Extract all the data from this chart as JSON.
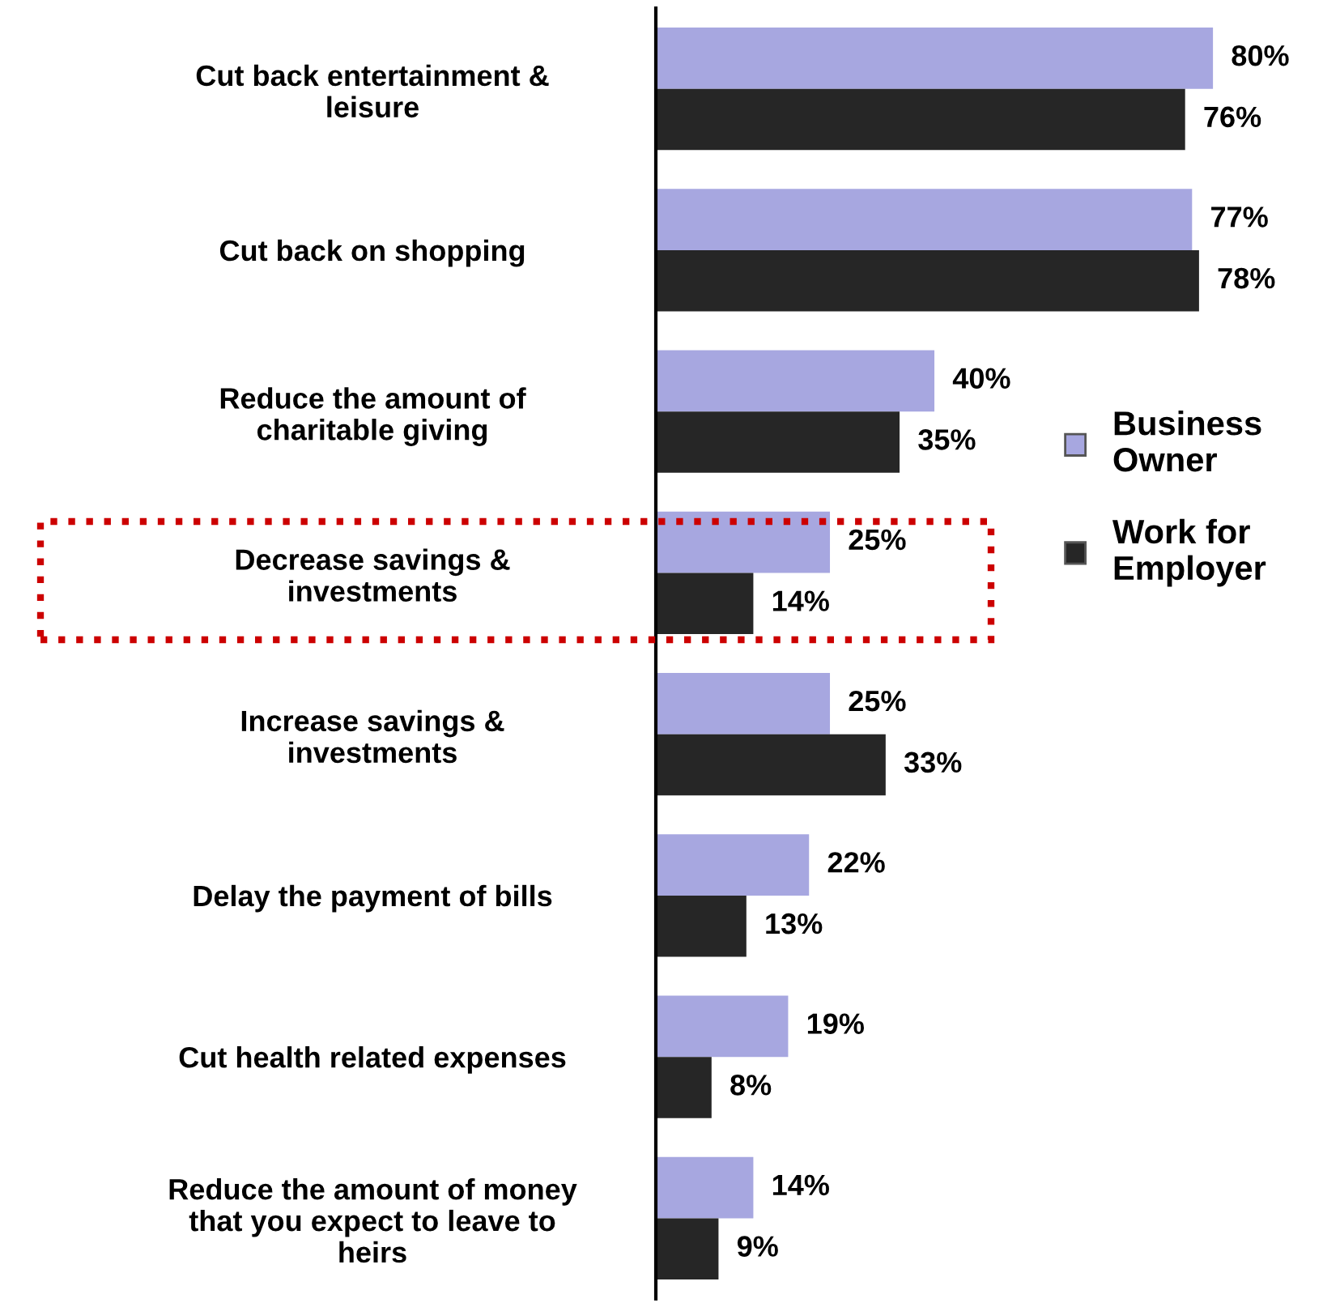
{
  "chart_data": {
    "type": "bar",
    "orientation": "horizontal",
    "legend": "right",
    "grid": false,
    "categories": [
      "Cut back entertainment &\nleisure",
      "Cut back on shopping",
      "Reduce the amount of\ncharitable giving",
      "Decrease savings &\ninvestments",
      "Increase savings &\ninvestments",
      "Delay the payment of bills",
      "Cut health related expenses",
      "Reduce the amount of money\nthat you expect to leave to\nheirs"
    ],
    "series": [
      {
        "name": "Business\nOwner",
        "color": "#a7a7e0",
        "values": [
          80,
          77,
          40,
          25,
          25,
          22,
          19,
          14
        ],
        "value_labels": [
          "80%",
          "77%",
          "40%",
          "25%",
          "25%",
          "22%",
          "19%",
          "14%"
        ]
      },
      {
        "name": "Work for\nEmployer",
        "color": "#262626",
        "values": [
          76,
          78,
          35,
          14,
          33,
          13,
          8,
          9
        ],
        "value_labels": [
          "76%",
          "78%",
          "35%",
          "14%",
          "33%",
          "13%",
          "8%",
          "9%"
        ]
      }
    ]
  }
}
